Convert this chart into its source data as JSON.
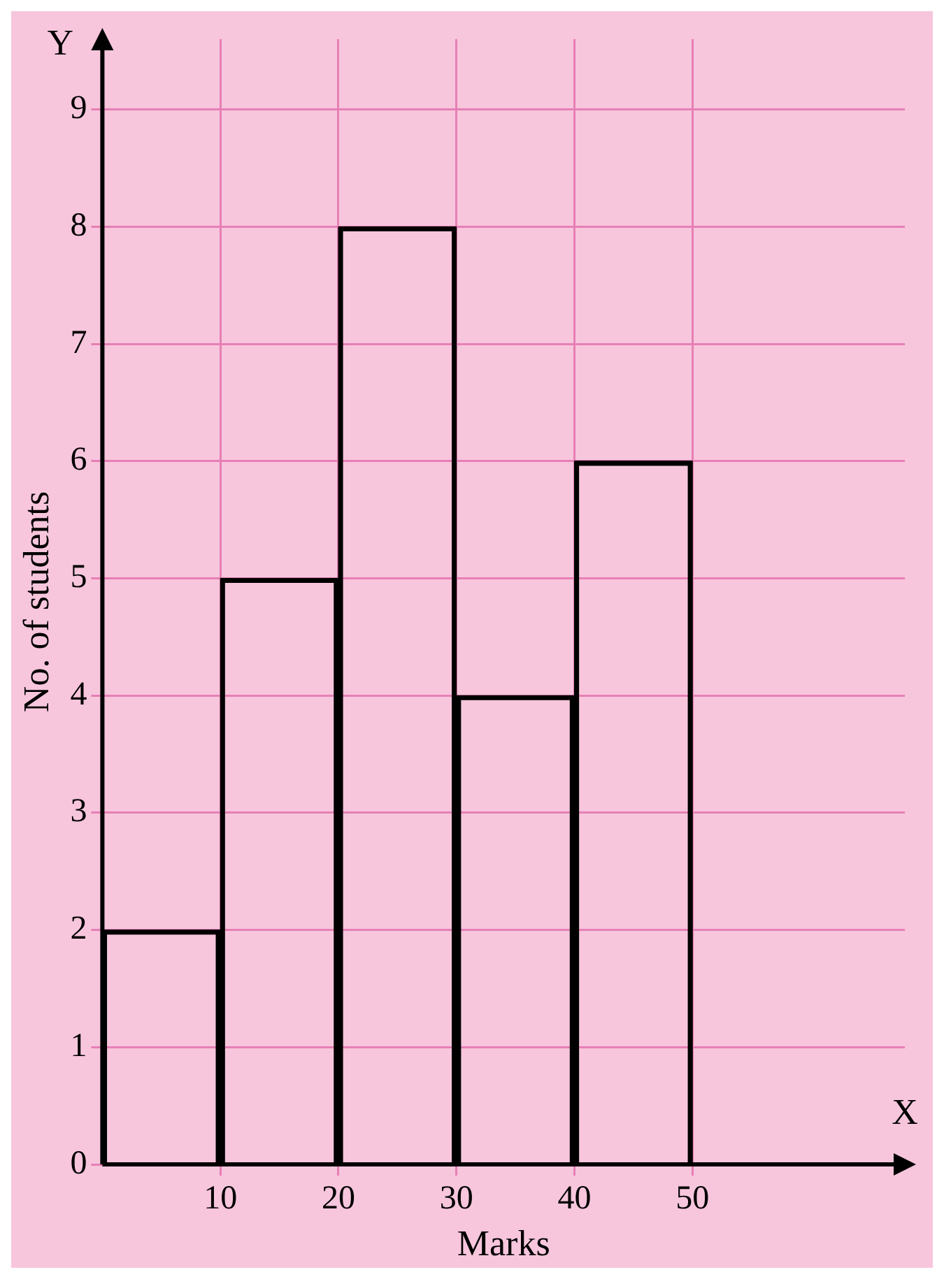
{
  "chart_data": {
    "type": "histogram",
    "xlabel": "Marks",
    "ylabel": "No. of students",
    "bins": [
      0,
      10,
      20,
      30,
      40,
      50
    ],
    "values": [
      2,
      5,
      8,
      4,
      6
    ],
    "color": "#000000",
    "xlim": [
      0,
      68
    ],
    "ylim": [
      0,
      9.6
    ],
    "xticks": [
      10,
      20,
      30,
      40,
      50
    ],
    "yticks": [
      0,
      1,
      2,
      3,
      4,
      5,
      6,
      7,
      8,
      9
    ],
    "grid": true,
    "legend": false,
    "annotations": [
      "X",
      "Y"
    ]
  }
}
